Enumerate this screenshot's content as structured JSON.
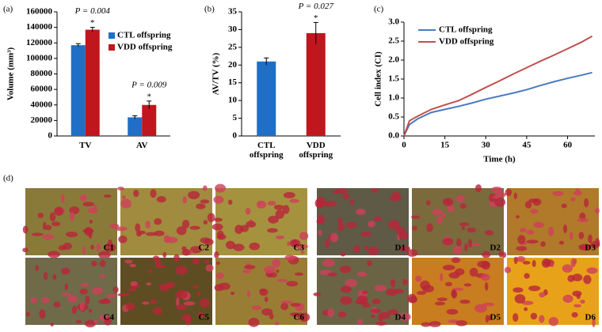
{
  "chart_data": [
    {
      "type": "bar",
      "panel_label": "(a)",
      "y_label": "Volume (mm³)",
      "categories": [
        "TV",
        "AV"
      ],
      "series": [
        {
          "name": "CTL offspring",
          "color": "#1f6fc6",
          "values": [
            117000,
            24000
          ],
          "errors": [
            2000,
            2000
          ]
        },
        {
          "name": "VDD offspring",
          "color": "#c0161d",
          "values": [
            137000,
            40000
          ],
          "errors": [
            3000,
            5000
          ]
        }
      ],
      "annotations": [
        {
          "text": "*",
          "series": 1,
          "category": 0
        },
        {
          "text": "P = 0.004",
          "series": 1,
          "category": 0
        },
        {
          "text": "*",
          "series": 1,
          "category": 1
        },
        {
          "text": "P = 0.009",
          "series": 1,
          "category": 1
        }
      ],
      "ylim": [
        0,
        160000
      ],
      "yticks": [
        0,
        20000,
        40000,
        60000,
        80000,
        100000,
        120000,
        140000,
        160000
      ],
      "legend": "upper right"
    },
    {
      "type": "bar",
      "panel_label": "(b)",
      "y_label": "AV/TV (%)",
      "categories": [
        "CTL offspring",
        "VDD offspring"
      ],
      "values": [
        21,
        29
      ],
      "errors": [
        1,
        3
      ],
      "colors": [
        "#1f6fc6",
        "#c0161d"
      ],
      "annotations": [
        {
          "text": "*",
          "category": 1
        },
        {
          "text": "P = 0.027",
          "category": 1
        }
      ],
      "ylim": [
        0,
        35
      ],
      "yticks": [
        0,
        5,
        10,
        15,
        20,
        25,
        30,
        35
      ]
    },
    {
      "type": "line",
      "panel_label": "(c)",
      "y_label": "Cell index (CI)",
      "x_label": "Time (h)",
      "x": [
        0,
        2,
        5,
        10,
        15,
        20,
        25,
        30,
        35,
        40,
        45,
        50,
        55,
        60,
        65,
        69
      ],
      "series": [
        {
          "name": "CTL offspring",
          "color": "#4a7ac0",
          "values": [
            0,
            0.3,
            0.45,
            0.62,
            0.7,
            0.78,
            0.87,
            0.97,
            1.05,
            1.13,
            1.22,
            1.33,
            1.43,
            1.52,
            1.6,
            1.67
          ]
        },
        {
          "name": "VDD offspring",
          "color": "#c0504d",
          "values": [
            0,
            0.4,
            0.52,
            0.7,
            0.82,
            0.93,
            1.1,
            1.28,
            1.45,
            1.63,
            1.8,
            1.97,
            2.13,
            2.3,
            2.47,
            2.63
          ]
        }
      ],
      "xlim": [
        0,
        70
      ],
      "xticks": [
        0,
        15,
        30,
        45,
        60
      ],
      "ylim": [
        0,
        3
      ],
      "yticks": [
        {
          "value": 0,
          "label": "0.0"
        },
        0.5,
        {
          "value": 1,
          "label": "1.0"
        },
        1.5,
        {
          "value": 2,
          "label": "2.0"
        },
        2.5,
        {
          "value": 3,
          "label": "3.0"
        }
      ],
      "legend": "upper left"
    }
  ],
  "panel_d": {
    "panel_label": "(d)",
    "images": [
      "C1",
      "C2",
      "C3",
      "C4",
      "C5",
      "C6",
      "D1",
      "D2",
      "D3",
      "D4",
      "D5",
      "D6"
    ]
  }
}
